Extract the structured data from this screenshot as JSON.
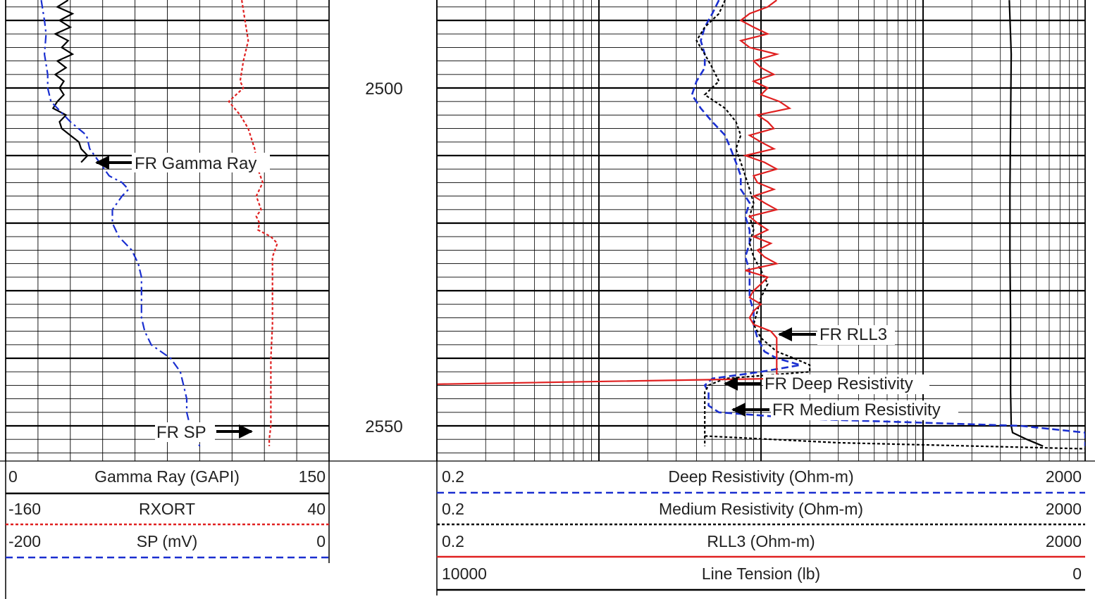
{
  "colors": {
    "black": "#000000",
    "blue": "#1a2fd0",
    "red": "#e02020",
    "grid": "#000000"
  },
  "chart_data": {
    "type": "line",
    "depth_axis": {
      "labels": [
        "2500",
        "2550"
      ],
      "values": [
        2500,
        2550
      ],
      "range": [
        2487,
        2555
      ]
    },
    "left_track": {
      "scales": [
        {
          "name": "Gamma Ray (GAPI)",
          "min": "0",
          "max": "150",
          "style": "solid",
          "color": "black"
        },
        {
          "name": "RXORT",
          "min": "-160",
          "max": "40",
          "style": "dotted",
          "color": "red"
        },
        {
          "name": "SP (mV)",
          "min": "-200",
          "max": "0",
          "style": "dashed",
          "color": "blue"
        }
      ],
      "annotations": [
        {
          "text": "FR Gamma Ray"
        },
        {
          "text": "FR SP"
        }
      ],
      "series": {
        "gamma_ray": {
          "depth": [
            2487,
            2488,
            2489,
            2490,
            2491,
            2492,
            2493,
            2494,
            2495,
            2496,
            2497,
            2498,
            2499,
            2500,
            2501,
            2502,
            2503,
            2504,
            2505,
            2506,
            2507,
            2508,
            2509,
            2510,
            2511
          ],
          "value": [
            29,
            24,
            31,
            25,
            30,
            23,
            29,
            26,
            31,
            24,
            28,
            23,
            27,
            25,
            27,
            24,
            22,
            28,
            25,
            26,
            30,
            34,
            35,
            38,
            35
          ]
        },
        "rxort": {
          "depth": [
            2487,
            2490,
            2493,
            2496,
            2499,
            2500,
            2502,
            2504,
            2506,
            2509,
            2512,
            2514,
            2516,
            2518,
            2519,
            2520,
            2521,
            2522,
            2523,
            2525,
            2530,
            2535,
            2540,
            2545,
            2550,
            2552,
            2553
          ],
          "value": [
            -14,
            -12,
            -10,
            -13,
            -15,
            -13,
            -22,
            -15,
            -10,
            -6,
            -4,
            -1,
            -5,
            -2,
            -5,
            -3,
            -4,
            4,
            8,
            5,
            5,
            5,
            4,
            4,
            4,
            3,
            3
          ]
        },
        "sp": {
          "depth": [
            2487,
            2490,
            2492,
            2495,
            2498,
            2500,
            2502,
            2503,
            2505,
            2507,
            2509,
            2511,
            2513,
            2514,
            2515,
            2516,
            2518,
            2520,
            2522,
            2524,
            2526,
            2528,
            2530,
            2534,
            2536,
            2538,
            2540,
            2542,
            2544,
            2546,
            2548,
            2550,
            2552,
            2553
          ],
          "value": [
            -178,
            -176,
            -175,
            -176,
            -174,
            -174,
            -172,
            -168,
            -160,
            -150,
            -148,
            -142,
            -136,
            -128,
            -124,
            -128,
            -134,
            -134,
            -130,
            -122,
            -118,
            -116,
            -116,
            -116,
            -114,
            -110,
            -98,
            -92,
            -90,
            -88,
            -88,
            -86,
            -82,
            -80
          ]
        }
      }
    },
    "right_track": {
      "scales": [
        {
          "name": "Deep Resistivity (Ohm-m)",
          "min": "0.2",
          "max": "2000",
          "style": "dashed",
          "color": "blue"
        },
        {
          "name": "Medium Resistivity (Ohm-m)",
          "min": "0.2",
          "max": "2000",
          "style": "dotted",
          "color": "black"
        },
        {
          "name": "RLL3 (Ohm-m)",
          "min": "0.2",
          "max": "2000",
          "style": "solid",
          "color": "red"
        },
        {
          "name": "Line Tension (lb)",
          "min": "10000",
          "max": "0",
          "style": "solid",
          "color": "black"
        }
      ],
      "annotations": [
        {
          "text": "FR RLL3"
        },
        {
          "text": "FR Deep Resistivity"
        },
        {
          "text": "FR Medium Resistivity"
        }
      ],
      "series": {
        "deep": {
          "depth": [
            2487,
            2489,
            2491,
            2493,
            2495,
            2497,
            2499,
            2501,
            2503,
            2505,
            2507,
            2509,
            2511,
            2513,
            2515,
            2517,
            2519,
            2521,
            2523,
            2525,
            2527,
            2529,
            2531,
            2533,
            2535,
            2537,
            2539,
            2540,
            2541,
            2542,
            2543,
            2544,
            2545,
            2546,
            2547,
            2548,
            2549,
            2550,
            2551,
            2552,
            2553
          ],
          "value": [
            11,
            10,
            9,
            8.5,
            9,
            9,
            8,
            7.5,
            8.5,
            10,
            12,
            13,
            14,
            15,
            15,
            17,
            16,
            17,
            17,
            16,
            17,
            17,
            17,
            18,
            18,
            19,
            21,
            25,
            35,
            20,
            10,
            9,
            9.5,
            9.5,
            9.5,
            11,
            40,
            800,
            2000,
            2000,
            2000
          ]
        },
        "medium": {
          "depth": [
            2487,
            2489,
            2491,
            2493,
            2495,
            2497,
            2499,
            2501,
            2503,
            2505,
            2507,
            2509,
            2511,
            2513,
            2515,
            2517,
            2519,
            2521,
            2523,
            2525,
            2527,
            2529,
            2531,
            2533,
            2535,
            2537,
            2539,
            2540,
            2541,
            2542,
            2543,
            2544,
            2545,
            2546,
            2547,
            2548,
            2549,
            2550,
            2551,
            2552,
            2553
          ],
          "value": [
            12,
            11,
            9,
            8,
            9,
            10,
            11,
            9,
            12,
            14,
            15,
            14,
            15,
            16,
            17,
            18,
            17,
            18,
            17,
            18,
            20,
            22,
            20,
            19,
            18,
            20,
            25,
            32,
            40,
            40,
            12,
            9.5,
            9,
            9,
            9,
            9,
            9,
            9,
            9,
            9,
            9
          ],
          "tail_depth": [
            2551.5,
            2552.5,
            2553.4
          ],
          "tail_value": [
            9,
            60,
            2000
          ]
        },
        "rll3": {
          "depth": [
            2487,
            2488,
            2489,
            2490,
            2491,
            2492,
            2493,
            2494,
            2495,
            2496,
            2497,
            2498,
            2499,
            2500,
            2501,
            2502,
            2503,
            2504,
            2505,
            2506,
            2507,
            2508,
            2509,
            2510,
            2511,
            2512,
            2513,
            2514,
            2515,
            2516,
            2517,
            2518,
            2519,
            2520,
            2521,
            2522,
            2523,
            2524,
            2525,
            2526,
            2527,
            2528,
            2529,
            2530,
            2531,
            2532,
            2533,
            2534,
            2535,
            2536,
            2537,
            2538,
            2539,
            2540,
            2541,
            2542
          ],
          "value": [
            25,
            22,
            17,
            15,
            18,
            22,
            15,
            17,
            25,
            18,
            20,
            24,
            18,
            22,
            20,
            26,
            30,
            19,
            22,
            24,
            17,
            20,
            24,
            16,
            21,
            25,
            18,
            19,
            24,
            18,
            21,
            25,
            17,
            19,
            22,
            18,
            23,
            19,
            21,
            25,
            16,
            22,
            20,
            18,
            17,
            20,
            18,
            17,
            18,
            23,
            25,
            25,
            25,
            25,
            25,
            25
          ],
          "step_depth": 2543,
          "step_left_value": 0.2
        },
        "tension": {
          "depth": [
            2487,
            2495,
            2505,
            2515,
            2525,
            2535,
            2545,
            2550,
            2551,
            2552,
            2553
          ],
          "value": [
            1170,
            1140,
            1150,
            1160,
            1160,
            1150,
            1150,
            1140,
            1120,
            900,
            650
          ]
        }
      }
    }
  }
}
